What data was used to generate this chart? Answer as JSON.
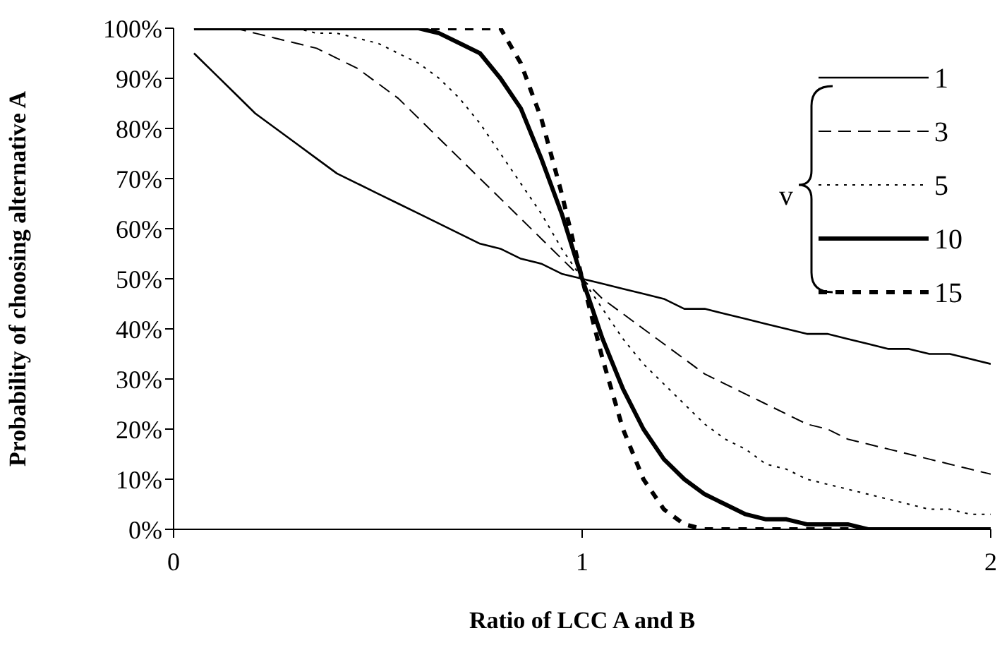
{
  "chart_data": {
    "type": "line",
    "xlabel": "Ratio of LCC A and B",
    "ylabel": "Probability of choosing alternative A",
    "legend_title": "v",
    "legend": "top right",
    "marker": "none",
    "grid": false,
    "xlim": [
      0,
      2
    ],
    "xticks": [
      0,
      1,
      2
    ],
    "ylim": [
      0,
      100
    ],
    "yticks": [
      {
        "value": 0,
        "label": "0%"
      },
      {
        "value": 10,
        "label": "10%"
      },
      {
        "value": 20,
        "label": "20%"
      },
      {
        "value": 30,
        "label": "30%"
      },
      {
        "value": 40,
        "label": "40%"
      },
      {
        "value": 50,
        "label": "50%"
      },
      {
        "value": 60,
        "label": "60%"
      },
      {
        "value": 70,
        "label": "70%"
      },
      {
        "value": 80,
        "label": "80%"
      },
      {
        "value": 90,
        "label": "90%"
      },
      {
        "value": 100,
        "label": "100%"
      }
    ],
    "x": [
      0.05,
      0.1,
      0.15,
      0.2,
      0.25,
      0.3,
      0.35,
      0.4,
      0.45,
      0.5,
      0.55,
      0.6,
      0.65,
      0.7,
      0.75,
      0.8,
      0.85,
      0.9,
      0.95,
      1,
      1.05,
      1.1,
      1.15,
      1.2,
      1.25,
      1.3,
      1.35,
      1.4,
      1.45,
      1.5,
      1.55,
      1.6,
      1.65,
      1.7,
      1.75,
      1.8,
      1.85,
      1.9,
      1.95,
      2
    ],
    "series": [
      {
        "name": "1",
        "color": "#000000",
        "line_style": "solid",
        "values": [
          95,
          91,
          87,
          83,
          80,
          77,
          74,
          71,
          69,
          67,
          65,
          63,
          61,
          59,
          57,
          56,
          54,
          53,
          51,
          50,
          49,
          48,
          47,
          46,
          44,
          44,
          43,
          42,
          41,
          40,
          39,
          39,
          38,
          37,
          36,
          36,
          35,
          35,
          34,
          33
        ]
      },
      {
        "name": "3",
        "color": "#000000",
        "line_style": "dashed",
        "values": [
          100,
          100,
          100,
          99,
          98,
          97,
          96,
          94,
          92,
          89,
          86,
          82,
          78,
          74,
          70,
          66,
          62,
          58,
          54,
          50,
          46,
          43,
          40,
          37,
          34,
          31,
          29,
          27,
          25,
          23,
          21,
          20,
          18,
          17,
          16,
          15,
          14,
          13,
          12,
          11
        ]
      },
      {
        "name": "5",
        "color": "#000000",
        "line_style": "dotted",
        "values": [
          100,
          100,
          100,
          100,
          100,
          100,
          99,
          99,
          98,
          97,
          95,
          93,
          90,
          86,
          81,
          75,
          69,
          63,
          56,
          50,
          44,
          38,
          33,
          29,
          25,
          21,
          18,
          16,
          13,
          12,
          10,
          9,
          8,
          7,
          6,
          5,
          4,
          4,
          3,
          3
        ]
      },
      {
        "name": "10",
        "color": "#000000",
        "line_style": "solid",
        "values": [
          100,
          100,
          100,
          100,
          100,
          100,
          100,
          100,
          100,
          100,
          100,
          100,
          99,
          97,
          95,
          90,
          84,
          74,
          63,
          50,
          38,
          28,
          20,
          14,
          10,
          7,
          5,
          3,
          2,
          2,
          1,
          1,
          1,
          0,
          0,
          0,
          0,
          0,
          0,
          0
        ]
      },
      {
        "name": "15",
        "color": "#000000",
        "line_style": "dashed",
        "values": [
          100,
          100,
          100,
          100,
          100,
          100,
          100,
          100,
          100,
          100,
          100,
          100,
          100,
          100,
          100,
          100,
          93,
          82,
          67,
          50,
          34,
          20,
          10,
          4,
          1,
          0,
          0,
          0,
          0,
          0,
          0,
          0,
          0,
          0,
          0,
          0,
          0,
          0,
          0,
          0
        ]
      }
    ]
  }
}
